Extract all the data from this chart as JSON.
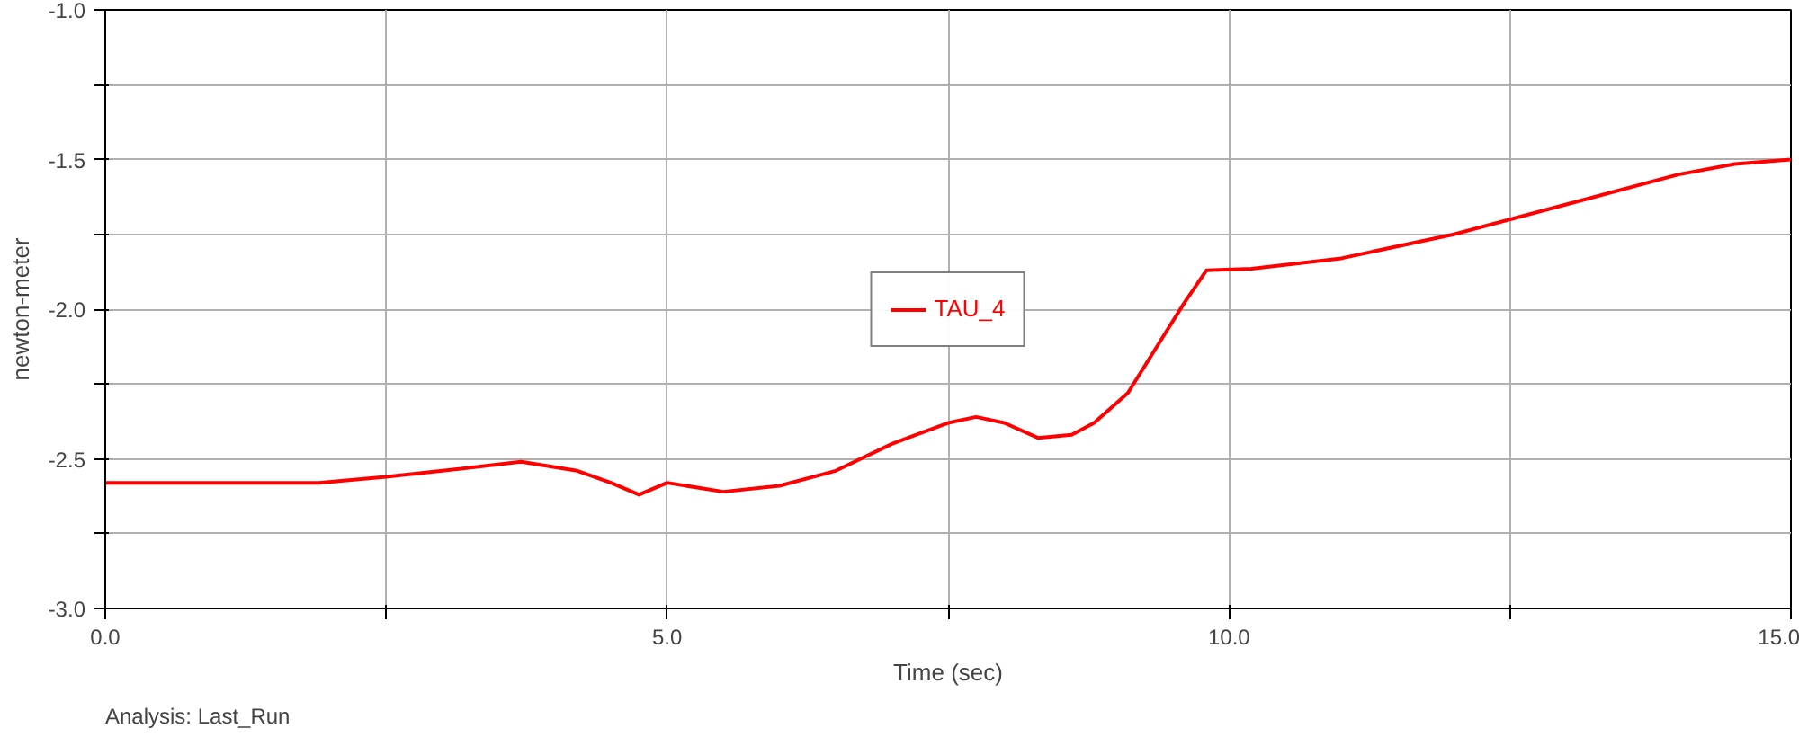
{
  "chart_data": {
    "type": "line",
    "xlabel": "Time (sec)",
    "ylabel": "newton-meter",
    "annotations": [
      "Analysis:  Last_Run"
    ],
    "x": [
      0,
      1.9,
      2.5,
      3.0,
      3.7,
      4.2,
      4.5,
      4.75,
      5.0,
      5.5,
      6.0,
      6.5,
      7.0,
      7.5,
      7.75,
      8.0,
      8.3,
      8.6,
      8.8,
      9.1,
      9.4,
      9.6,
      9.8,
      10.2,
      11,
      12,
      13,
      14,
      14.5,
      15
    ],
    "series": [
      {
        "name": "TAU_4",
        "color": "#ff0000",
        "values": [
          -2.58,
          -2.58,
          -2.56,
          -2.54,
          -2.51,
          -2.54,
          -2.58,
          -2.62,
          -2.58,
          -2.61,
          -2.59,
          -2.54,
          -2.45,
          -2.38,
          -2.36,
          -2.38,
          -2.43,
          -2.42,
          -2.38,
          -2.28,
          -2.1,
          -1.98,
          -1.87,
          -1.865,
          -1.83,
          -1.75,
          -1.65,
          -1.55,
          -1.515,
          -1.5
        ]
      }
    ],
    "xlim": [
      0,
      15
    ],
    "ylim": [
      -3,
      -1
    ],
    "xticks": [
      {
        "value": 0,
        "label": "0.0"
      },
      {
        "value": 2.5,
        "label": null
      },
      {
        "value": 5,
        "label": "5.0"
      },
      {
        "value": 7.5,
        "label": null
      },
      {
        "value": 10,
        "label": "10.0"
      },
      {
        "value": 12.5,
        "label": null
      },
      {
        "value": 15,
        "label": "15.0"
      }
    ],
    "yticks": [
      {
        "value": -3,
        "label": "-3.0"
      },
      {
        "value": -2.75,
        "label": null
      },
      {
        "value": -2.5,
        "label": "-2.5"
      },
      {
        "value": -2.25,
        "label": null
      },
      {
        "value": -2,
        "label": "-2.0"
      },
      {
        "value": -1.75,
        "label": null
      },
      {
        "value": -1.5,
        "label": "-1.5"
      },
      {
        "value": -1.25,
        "label": null
      },
      {
        "value": -1,
        "label": "-1.0"
      }
    ],
    "grid": true,
    "legend": "center",
    "marker": "none",
    "line_style": "solid"
  }
}
